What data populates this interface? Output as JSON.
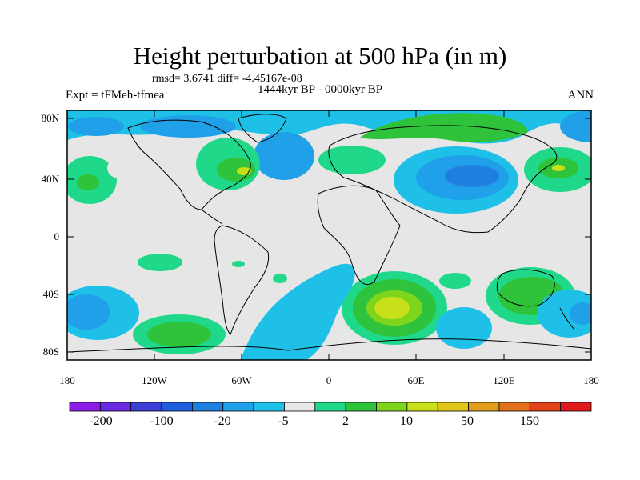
{
  "title": "Height perturbation at 500 hPa (in m)",
  "stats": "rmsd= 3.6741 diff= -4.45167e-08",
  "experiment": "Expt = tFMeh-tfmea",
  "period": "1444kyr BP - 0000kyr BP",
  "season": "ANN",
  "lat_labels": [
    "80N",
    "40N",
    "0",
    "40S",
    "80S"
  ],
  "lon_labels": [
    "180",
    "120W",
    "60W",
    "0",
    "60E",
    "120E",
    "180"
  ],
  "colorbar": {
    "colors": [
      "#8a1de6",
      "#6a2ae0",
      "#3b3fd6",
      "#1f5fdb",
      "#1f7fe0",
      "#1fa0e8",
      "#1fc0e8",
      "#e6e6e6",
      "#1fd88a",
      "#2ec33a",
      "#7fd41c",
      "#c7e01a",
      "#e0c61a",
      "#e09c1a",
      "#e0701a",
      "#e0421a",
      "#e01a1a"
    ],
    "labels": [
      "-200",
      "-100",
      "-20",
      "-5",
      "2",
      "10",
      "50",
      "150"
    ]
  },
  "colors": {
    "ocean_background": "#e6e6e6",
    "coast": "#000000"
  }
}
